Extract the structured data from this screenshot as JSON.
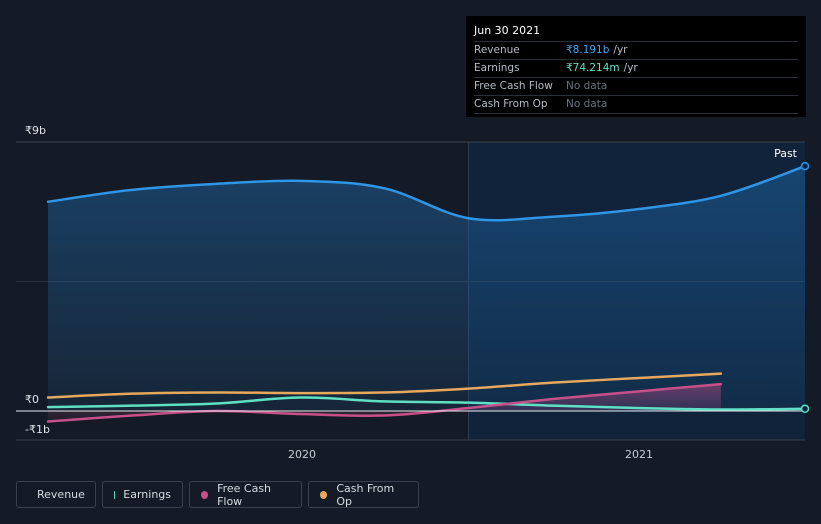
{
  "tooltip": {
    "date": "Jun 30 2021",
    "rows": [
      {
        "label": "Revenue",
        "value": "₹8.191b",
        "unit": "/yr"
      },
      {
        "label": "Earnings",
        "value": "₹74.214m",
        "unit": "/yr"
      },
      {
        "label": "Free Cash Flow",
        "value": "No data"
      },
      {
        "label": "Cash From Op",
        "value": "No data"
      }
    ]
  },
  "legend": [
    {
      "label": "Revenue",
      "color": "#2f95e6"
    },
    {
      "label": "Earnings",
      "color": "#5fe0c5"
    },
    {
      "label": "Free Cash Flow",
      "color": "#c8508a"
    },
    {
      "label": "Cash From Op",
      "color": "#e6a85c"
    }
  ],
  "chart_data": {
    "type": "line",
    "y_ticks": [
      "₹9b",
      "₹0",
      "-₹1b"
    ],
    "x_ticks": [
      "2020",
      "2021"
    ],
    "past_label": "Past",
    "ylim": [
      -1,
      9
    ],
    "x_range": [
      2019.25,
      2021.5
    ],
    "past_start": 2020.5,
    "series": [
      {
        "name": "Revenue",
        "color": "#2f95e6",
        "fill": true,
        "x": [
          2019.25,
          2019.5,
          2019.75,
          2020.0,
          2020.25,
          2020.5,
          2020.75,
          2021.0,
          2021.25,
          2021.5
        ],
        "y": [
          7.0,
          7.4,
          7.6,
          7.7,
          7.45,
          6.45,
          6.5,
          6.75,
          7.2,
          8.191
        ]
      },
      {
        "name": "Earnings",
        "color": "#5fe0c5",
        "fill": false,
        "x": [
          2019.25,
          2019.5,
          2019.75,
          2020.0,
          2020.25,
          2020.5,
          2020.75,
          2021.0,
          2021.25,
          2021.5
        ],
        "y": [
          0.13,
          0.18,
          0.25,
          0.45,
          0.32,
          0.28,
          0.18,
          0.1,
          0.05,
          0.074
        ]
      },
      {
        "name": "Free Cash Flow",
        "color": "#c8508a",
        "fill": true,
        "x": [
          2019.25,
          2019.5,
          2019.75,
          2020.0,
          2020.25,
          2020.5,
          2020.75,
          2021.0,
          2021.25
        ],
        "y": [
          -0.35,
          -0.15,
          0.0,
          -0.1,
          -0.15,
          0.1,
          0.4,
          0.65,
          0.9
        ]
      },
      {
        "name": "Cash From Op",
        "color": "#e6a85c",
        "fill": false,
        "x": [
          2019.25,
          2019.5,
          2019.75,
          2020.0,
          2020.25,
          2020.5,
          2020.75,
          2021.0,
          2021.25
        ],
        "y": [
          0.45,
          0.58,
          0.62,
          0.6,
          0.62,
          0.75,
          0.95,
          1.1,
          1.25
        ]
      }
    ]
  }
}
